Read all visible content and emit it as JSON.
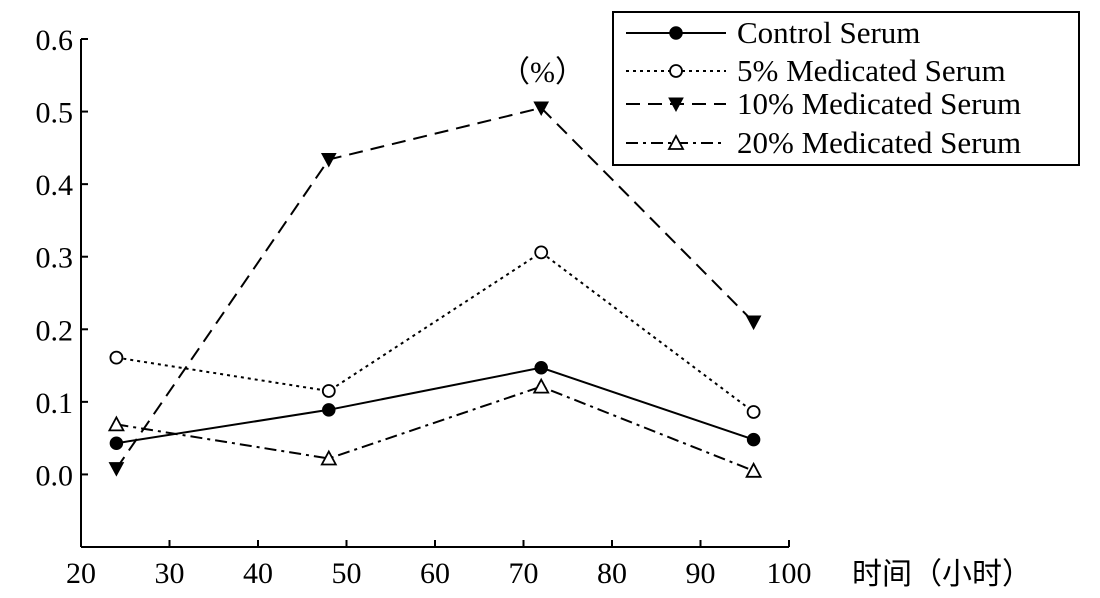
{
  "chart_data": {
    "type": "line",
    "title": "",
    "ylabel": "（%）",
    "xlabel": "时间（小时）",
    "xlim": [
      20,
      100
    ],
    "ylim": [
      -0.1,
      0.6
    ],
    "xticks": [
      20,
      30,
      40,
      50,
      60,
      70,
      80,
      90,
      100
    ],
    "xtick_labels": [
      "20",
      "30",
      "40",
      "50",
      "60",
      "70",
      "80",
      "90",
      "100"
    ],
    "yticks": [
      0.0,
      0.1,
      0.2,
      0.3,
      0.4,
      0.5,
      0.6
    ],
    "ytick_labels": [
      "0.0",
      "0.1",
      "0.2",
      "0.3",
      "0.4",
      "0.5",
      "0.6"
    ],
    "grid": false,
    "legend_position": "top-right",
    "x": [
      24,
      48,
      72,
      96
    ],
    "series": [
      {
        "name": "Control Serum",
        "values": [
          0.043,
          0.089,
          0.147,
          0.048
        ],
        "marker": "filled-circle",
        "line_style": "solid",
        "color": "#000000"
      },
      {
        "name": "5% Medicated Serum",
        "values": [
          0.161,
          0.115,
          0.306,
          0.086
        ],
        "marker": "open-circle",
        "line_style": "dotted",
        "color": "#000000"
      },
      {
        "name": "10% Medicated Serum",
        "values": [
          0.008,
          0.434,
          0.505,
          0.21
        ],
        "marker": "filled-triangle-down",
        "line_style": "dashed",
        "color": "#000000"
      },
      {
        "name": "20% Medicated Serum",
        "values": [
          0.069,
          0.022,
          0.121,
          0.005
        ],
        "marker": "open-triangle-up",
        "line_style": "dash-dot",
        "color": "#000000"
      }
    ]
  }
}
